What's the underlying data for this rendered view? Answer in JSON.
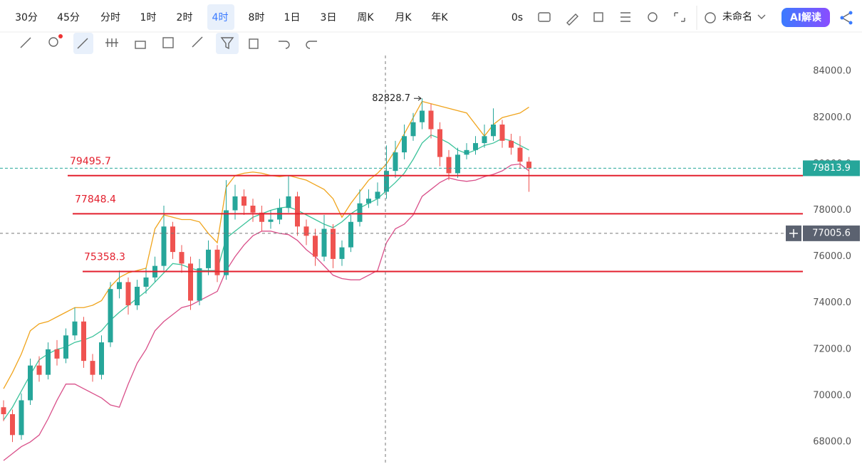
{
  "toolbar": {
    "intervals": [
      "30分",
      "45分",
      "分时",
      "1时",
      "2时",
      "4时",
      "8时",
      "1日",
      "3日",
      "周K",
      "月K",
      "年K"
    ],
    "active_interval": 5,
    "timer": "0s",
    "layout_name": "未命名",
    "ai_button": "AI解读"
  },
  "chart_data": {
    "type": "candlestick",
    "ohlc": [
      [
        69500,
        69800,
        68900,
        69200
      ],
      [
        69200,
        69400,
        68000,
        68300
      ],
      [
        68300,
        70100,
        68100,
        69800
      ],
      [
        69800,
        71600,
        69600,
        71300
      ],
      [
        71300,
        71700,
        70600,
        70900
      ],
      [
        70900,
        72300,
        70700,
        72000
      ],
      [
        72000,
        72400,
        71300,
        71600
      ],
      [
        71600,
        72900,
        71400,
        72600
      ],
      [
        72600,
        73800,
        72400,
        73200
      ],
      [
        73200,
        73400,
        71200,
        71500
      ],
      [
        71500,
        71800,
        70600,
        70900
      ],
      [
        70900,
        72600,
        70700,
        72300
      ],
      [
        72300,
        74900,
        72100,
        74600
      ],
      [
        74600,
        75400,
        74200,
        74900
      ],
      [
        74900,
        75100,
        73500,
        73900
      ],
      [
        73900,
        75000,
        73700,
        74700
      ],
      [
        74700,
        75500,
        74400,
        75100
      ],
      [
        75100,
        76000,
        74900,
        75600
      ],
      [
        75600,
        78200,
        75400,
        77300
      ],
      [
        77300,
        77500,
        75900,
        76200
      ],
      [
        76200,
        76500,
        75300,
        75700
      ],
      [
        75700,
        76000,
        73700,
        74100
      ],
      [
        74100,
        75900,
        73900,
        75500
      ],
      [
        75500,
        76700,
        75200,
        76300
      ],
      [
        76300,
        76500,
        74900,
        75200
      ],
      [
        75200,
        79300,
        75000,
        78000
      ],
      [
        78000,
        79100,
        77600,
        78600
      ],
      [
        78600,
        78900,
        77800,
        78200
      ],
      [
        78200,
        78500,
        77500,
        77900
      ],
      [
        77900,
        78200,
        77100,
        77500
      ],
      [
        77500,
        78000,
        77200,
        77600
      ],
      [
        77600,
        78500,
        77400,
        78100
      ],
      [
        78100,
        79500,
        77900,
        78600
      ],
      [
        78600,
        78800,
        76900,
        77300
      ],
      [
        77300,
        77600,
        76500,
        76900
      ],
      [
        76900,
        77200,
        75600,
        76000
      ],
      [
        76000,
        77800,
        75800,
        77200
      ],
      [
        77200,
        77400,
        75500,
        75900
      ],
      [
        75900,
        76700,
        75600,
        76400
      ],
      [
        76400,
        77800,
        76200,
        77500
      ],
      [
        77500,
        78900,
        77300,
        78300
      ],
      [
        78300,
        78900,
        78100,
        78500
      ],
      [
        78500,
        79200,
        78200,
        78800
      ],
      [
        78800,
        80800,
        78500,
        79700
      ],
      [
        79700,
        81000,
        79400,
        80500
      ],
      [
        80500,
        81700,
        80200,
        81200
      ],
      [
        81200,
        82200,
        81000,
        81800
      ],
      [
        81800,
        82828.7,
        81500,
        82300
      ],
      [
        82300,
        82600,
        81100,
        81500
      ],
      [
        81500,
        81800,
        79900,
        80300
      ],
      [
        80300,
        80600,
        79300,
        79600
      ],
      [
        79600,
        80700,
        79400,
        80400
      ],
      [
        80400,
        80900,
        80200,
        80600
      ],
      [
        80600,
        81200,
        80400,
        80900
      ],
      [
        80900,
        81700,
        80700,
        81200
      ],
      [
        81200,
        82400,
        81000,
        81700
      ],
      [
        81700,
        81900,
        80700,
        81000
      ],
      [
        81000,
        81300,
        80400,
        80700
      ],
      [
        80700,
        81200,
        79800,
        80100
      ],
      [
        80100,
        80300,
        78800,
        79813.9
      ]
    ],
    "up_color": "#26a69a",
    "down_color": "#ef5350",
    "bands": [
      {
        "color": "#f0a41c",
        "values": [
          70300,
          71000,
          71800,
          72800,
          73100,
          73200,
          73400,
          73600,
          73800,
          73800,
          73900,
          74100,
          74700,
          75100,
          75300,
          75400,
          75500,
          77200,
          77800,
          77700,
          77600,
          77600,
          77500,
          77000,
          76600,
          79000,
          79500,
          79600,
          79650,
          79600,
          79500,
          79450,
          79500,
          79400,
          79300,
          79100,
          78900,
          78500,
          77700,
          78300,
          78800,
          79300,
          79600,
          80000,
          80600,
          81300,
          82000,
          82700,
          82600,
          82500,
          82400,
          82300,
          82200,
          81700,
          81200,
          81700,
          82000,
          82100,
          82200,
          82450
        ]
      },
      {
        "color": "#3cc39b",
        "values": [
          68950,
          69500,
          70200,
          70900,
          71550,
          71800,
          72000,
          72100,
          72300,
          72400,
          72550,
          72800,
          73250,
          73600,
          73900,
          74200,
          74500,
          74900,
          75300,
          75700,
          75650,
          75500,
          75400,
          75400,
          75400,
          76800,
          77100,
          77400,
          77700,
          77850,
          78000,
          78100,
          78150,
          78000,
          77800,
          77600,
          77400,
          77250,
          77500,
          77850,
          78100,
          78300,
          78500,
          78850,
          79200,
          79600,
          80200,
          80900,
          81250,
          81100,
          80900,
          80600,
          80450,
          80600,
          80800,
          80900,
          81100,
          81000,
          80800,
          80600
        ]
      },
      {
        "color": "#d9508a",
        "values": [
          67200,
          67500,
          67800,
          68000,
          68300,
          69000,
          69800,
          70500,
          70500,
          70300,
          70100,
          69900,
          69600,
          69500,
          70500,
          71400,
          72000,
          72800,
          73200,
          73500,
          73800,
          73900,
          74100,
          74300,
          74500,
          75400,
          76000,
          76500,
          76900,
          77100,
          77100,
          77000,
          76950,
          76700,
          76300,
          76000,
          75600,
          75200,
          75050,
          75000,
          75000,
          75200,
          75400,
          76600,
          77200,
          77400,
          77800,
          78600,
          78900,
          79200,
          79400,
          79300,
          79250,
          79300,
          79450,
          79550,
          79700,
          79950,
          80000,
          79700
        ]
      }
    ],
    "levels": [
      79495.7,
      77848.4,
      75358.3
    ],
    "level_color": "#e3202e",
    "crosshair": 77005.6,
    "ylim": [
      67050,
      84680
    ],
    "yticks": [
      {
        "value": 68000,
        "label": "68000.0"
      },
      {
        "value": 70000,
        "label": "70000.0"
      },
      {
        "value": 72000,
        "label": "72000.0"
      },
      {
        "value": 74000,
        "label": "74000.0"
      },
      {
        "value": 76000,
        "label": "76000.0"
      },
      {
        "value": 78000,
        "label": "78000.0"
      },
      {
        "value": 80000,
        "label": "80000.0"
      },
      {
        "value": 82000,
        "label": "82000.0"
      },
      {
        "value": 84000,
        "label": "84000.0"
      }
    ],
    "grid": false
  }
}
